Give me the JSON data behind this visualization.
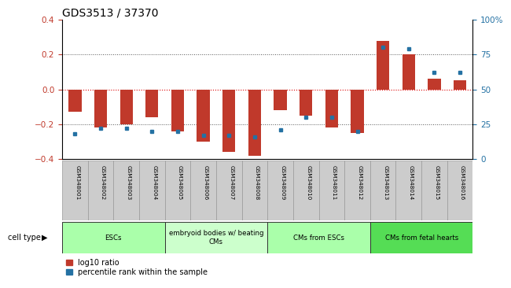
{
  "title": "GDS3513 / 37370",
  "samples": [
    "GSM348001",
    "GSM348002",
    "GSM348003",
    "GSM348004",
    "GSM348005",
    "GSM348006",
    "GSM348007",
    "GSM348008",
    "GSM348009",
    "GSM348010",
    "GSM348011",
    "GSM348012",
    "GSM348013",
    "GSM348014",
    "GSM348015",
    "GSM348016"
  ],
  "log10_ratio": [
    -0.13,
    -0.22,
    -0.2,
    -0.16,
    -0.24,
    -0.3,
    -0.36,
    -0.38,
    -0.12,
    -0.15,
    -0.22,
    -0.25,
    0.28,
    0.2,
    0.06,
    0.05
  ],
  "percentile_rank": [
    18,
    22,
    22,
    20,
    20,
    17,
    17,
    16,
    21,
    30,
    30,
    20,
    80,
    79,
    62,
    62
  ],
  "bar_color_red": "#c0392b",
  "bar_color_blue": "#2471a3",
  "title_fontsize": 10,
  "ylim_left": [
    -0.4,
    0.4
  ],
  "ylim_right": [
    0,
    100
  ],
  "yticks_left": [
    -0.4,
    -0.2,
    0.0,
    0.2,
    0.4
  ],
  "yticks_right": [
    0,
    25,
    50,
    75,
    100
  ],
  "cell_groups": [
    {
      "label": "ESCs",
      "start": 0,
      "end": 3,
      "color": "#aaffaa"
    },
    {
      "label": "embryoid bodies w/ beating\nCMs",
      "start": 4,
      "end": 7,
      "color": "#ccffcc"
    },
    {
      "label": "CMs from ESCs",
      "start": 8,
      "end": 11,
      "color": "#aaffaa"
    },
    {
      "label": "CMs from fetal hearts",
      "start": 12,
      "end": 15,
      "color": "#55dd55"
    }
  ],
  "legend_red_label": "log10 ratio",
  "legend_blue_label": "percentile rank within the sample",
  "xlabel_cell_type": "cell type",
  "hline_zero_color": "#dd0000",
  "hline_dotted_color": "#555555",
  "bar_width": 0.5
}
